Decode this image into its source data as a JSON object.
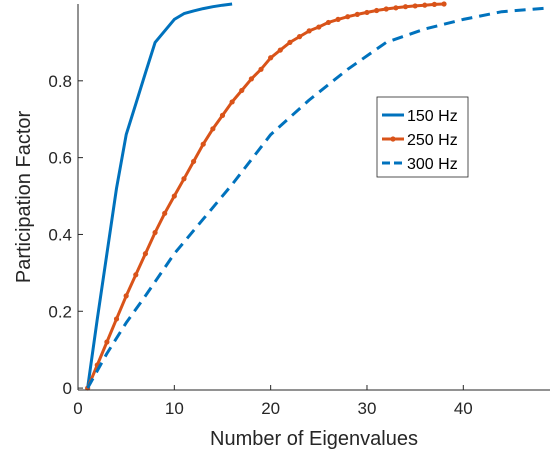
{
  "chart_data": {
    "type": "line",
    "xlabel": "Number of Eigenvalues",
    "ylabel": "Participation Factor",
    "xlim": [
      0,
      49
    ],
    "ylim": [
      -0.005,
      1.0
    ],
    "xticks": [
      0,
      10,
      20,
      30,
      40
    ],
    "xtick_labels": [
      "0",
      "10",
      "20",
      "30",
      "40"
    ],
    "yticks": [
      0,
      0.2,
      0.4,
      0.6,
      0.8
    ],
    "ytick_labels": [
      "0",
      "0.2",
      "0.4",
      "0.6",
      "0.8"
    ],
    "grid": false,
    "legend_position": "right-center",
    "series": [
      {
        "name": "150 Hz",
        "color": "#0072BD",
        "style": "solid",
        "markers": false,
        "x": [
          1,
          2,
          3,
          4,
          5,
          6,
          7,
          8,
          9,
          10,
          11,
          12,
          13,
          14,
          15,
          16
        ],
        "y": [
          0,
          0.18,
          0.35,
          0.52,
          0.66,
          0.74,
          0.82,
          0.9,
          0.93,
          0.96,
          0.975,
          0.982,
          0.988,
          0.993,
          0.997,
          1.0
        ]
      },
      {
        "name": "250 Hz",
        "color": "#D95319",
        "style": "solid",
        "markers": true,
        "x": [
          1,
          2,
          3,
          4,
          5,
          6,
          7,
          8,
          9,
          10,
          11,
          12,
          13,
          14,
          15,
          16,
          17,
          18,
          19,
          20,
          21,
          22,
          23,
          24,
          25,
          26,
          27,
          28,
          29,
          30,
          31,
          32,
          33,
          34,
          35,
          36,
          37,
          38
        ],
        "y": [
          0,
          0.06,
          0.12,
          0.18,
          0.24,
          0.295,
          0.35,
          0.405,
          0.455,
          0.5,
          0.545,
          0.59,
          0.635,
          0.675,
          0.71,
          0.745,
          0.775,
          0.805,
          0.83,
          0.86,
          0.88,
          0.9,
          0.915,
          0.93,
          0.94,
          0.952,
          0.96,
          0.967,
          0.973,
          0.978,
          0.983,
          0.987,
          0.99,
          0.993,
          0.995,
          0.997,
          0.999,
          1.0
        ]
      },
      {
        "name": "300 Hz",
        "color": "#0072BD",
        "style": "dashed",
        "markers": false,
        "x": [
          1,
          3,
          5,
          7,
          10,
          13,
          16,
          20,
          24,
          28,
          32,
          36,
          40,
          44,
          49
        ],
        "y": [
          0,
          0.09,
          0.17,
          0.24,
          0.35,
          0.44,
          0.53,
          0.66,
          0.75,
          0.83,
          0.9,
          0.935,
          0.96,
          0.98,
          0.99
        ]
      }
    ]
  }
}
